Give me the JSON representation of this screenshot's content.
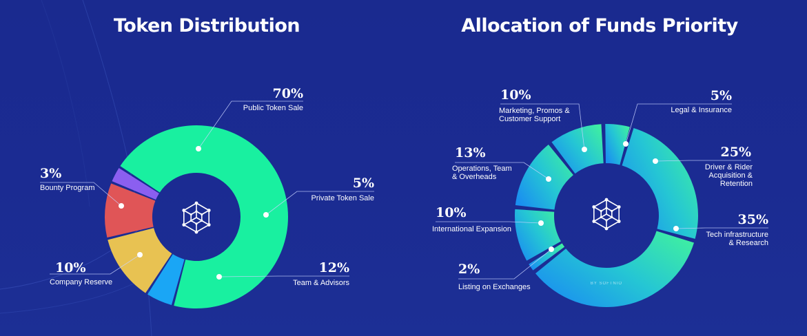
{
  "titles": {
    "left": "Token Distribution",
    "right": "Allocation of Funds Priority"
  },
  "watermark": "BY SOFTNIO",
  "chart_data": [
    {
      "type": "pie",
      "variant": "donut",
      "title": "Token Distribution",
      "slices": [
        {
          "label": "Public Token Sale",
          "value": 70,
          "display": "70%",
          "color": "#19f0a0"
        },
        {
          "label": "Private Token Sale",
          "value": 5,
          "display": "5%",
          "color": "#1aa6f5"
        },
        {
          "label": "Team & Advisors",
          "value": 12,
          "display": "12%",
          "color": "#e8c252"
        },
        {
          "label": "Company Reserve",
          "value": 10,
          "display": "10%",
          "color": "#e05557"
        },
        {
          "label": "Bounty Program",
          "value": 3,
          "display": "3%",
          "color": "#8b5ff0"
        }
      ]
    },
    {
      "type": "pie",
      "variant": "donut",
      "title": "Allocation of Funds Priority",
      "slices": [
        {
          "label": "Legal & Insurance",
          "value": 5,
          "display": "5%",
          "color": "#2fd5b7"
        },
        {
          "label": "Driver & Rider\nAcquisition &\nRetention",
          "value": 25,
          "display": "25%",
          "color": "#33e6a6"
        },
        {
          "label": "Tech infrastructure\n& Research",
          "value": 35,
          "display": "35%",
          "color": "#2cc8c0"
        },
        {
          "label": "Listing on Exchanges",
          "value": 2,
          "display": "2%",
          "color": "#1ea5e8"
        },
        {
          "label": "International Expansion",
          "value": 10,
          "display": "10%",
          "color": "#1b9fe9"
        },
        {
          "label": "Operations, Team\n& Overheads",
          "value": 13,
          "display": "13%",
          "color": "#1db0e2"
        },
        {
          "label": "Marketing, Promos &\nCustomer Support",
          "value": 10,
          "display": "10%",
          "color": "#24c0d8"
        }
      ]
    }
  ]
}
